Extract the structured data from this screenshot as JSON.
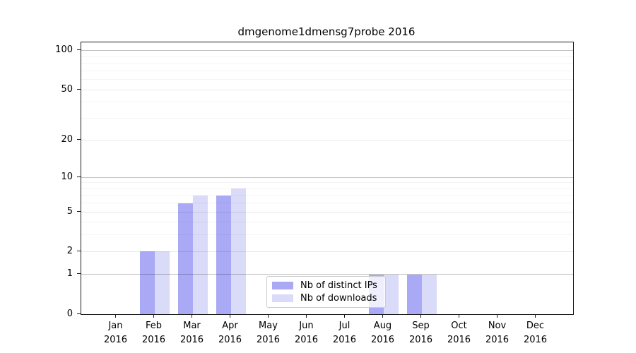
{
  "title": "dmgenome1dmensg7probe 2016",
  "chart_data": {
    "type": "bar",
    "year": "2016",
    "months": [
      "Jan",
      "Feb",
      "Mar",
      "Apr",
      "May",
      "Jun",
      "Jul",
      "Aug",
      "Sep",
      "Oct",
      "Nov",
      "Dec"
    ],
    "categories": [
      "Jan 2016",
      "Feb 2016",
      "Mar 2016",
      "Apr 2016",
      "May 2016",
      "Jun 2016",
      "Jul 2016",
      "Aug 2016",
      "Sep 2016",
      "Oct 2016",
      "Nov 2016",
      "Dec 2016"
    ],
    "series": [
      {
        "name": "Nb of distinct IPs",
        "color": "#a9a9f5",
        "values": [
          0,
          2,
          6,
          7,
          0,
          0,
          0,
          1,
          1,
          0,
          0,
          0
        ]
      },
      {
        "name": "Nb of downloads",
        "color": "#dadaf9",
        "values": [
          0,
          2,
          7,
          8,
          0,
          0,
          0,
          1,
          1,
          0,
          0,
          0
        ]
      }
    ],
    "title": "dmgenome1dmensg7probe 2016",
    "xlabel": "",
    "ylabel": "",
    "yscale": "log1p",
    "ylim": [
      0,
      116
    ],
    "yticks": [
      0,
      1,
      2,
      5,
      10,
      20,
      50,
      100
    ],
    "decade_ticks": [
      1,
      10,
      100
    ],
    "minor_gridlines": [
      3,
      4,
      6,
      7,
      8,
      9,
      30,
      40,
      60,
      70,
      80,
      90
    ],
    "grid": "horizontal",
    "legend_position": "bottom-center"
  },
  "colors": {
    "background": "#ffffff",
    "spine": "#1a1a1a",
    "grid_decade": "#c4c4c4",
    "grid_major": "#e9e9e9",
    "grid_minor": "#f4f4f4",
    "legend_border": "#cccccc"
  }
}
